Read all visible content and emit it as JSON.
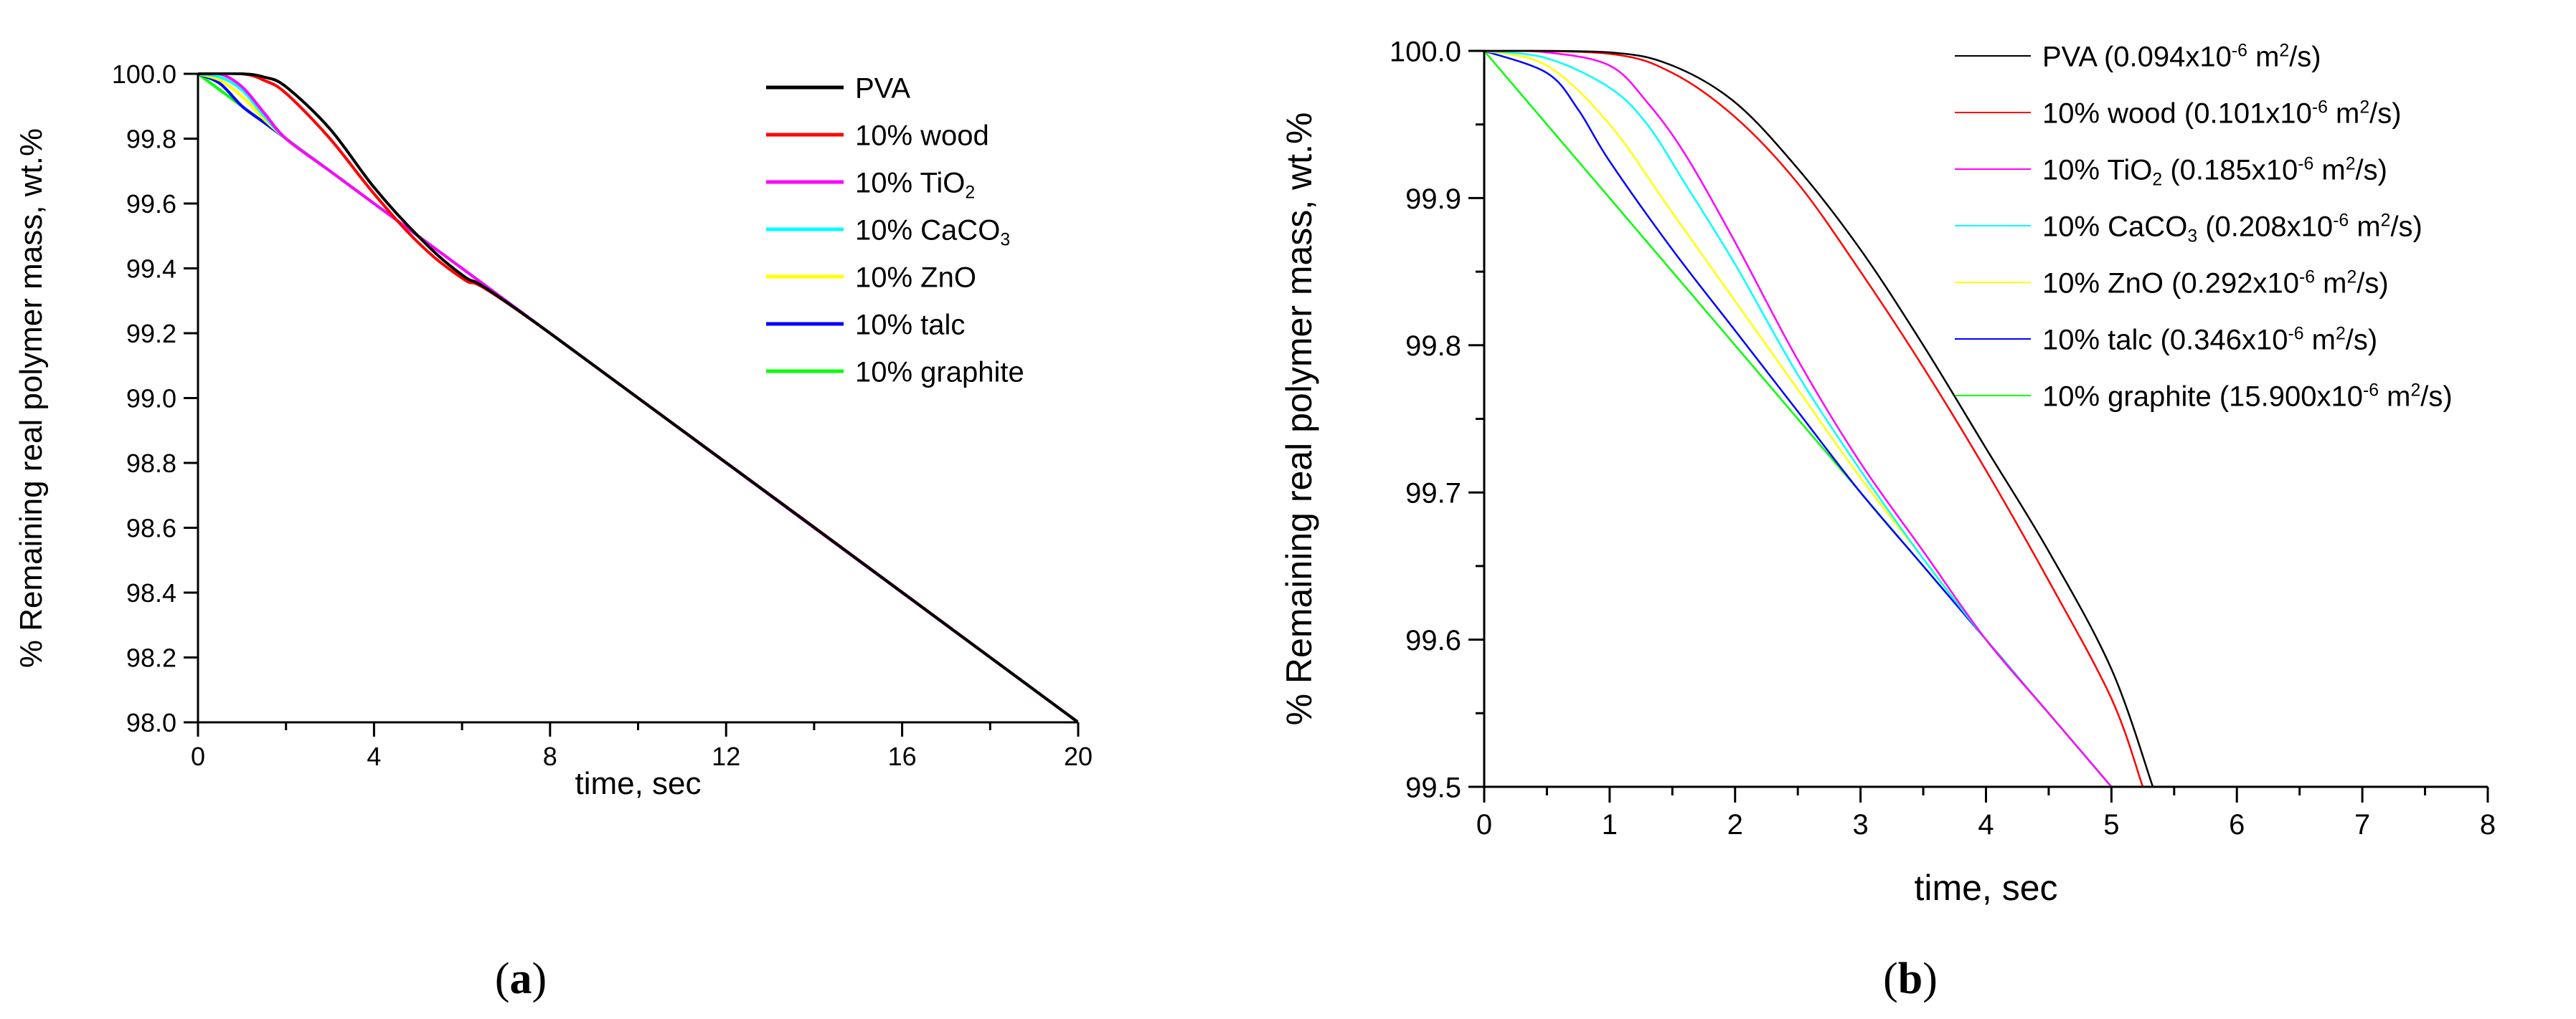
{
  "chart_data": [
    {
      "type": "line",
      "panel_label": "a",
      "xlabel": "time, sec",
      "ylabel": "% Remaining real polymer mass, wt.%",
      "xlim": [
        0,
        20
      ],
      "ylim": [
        98.0,
        100.0
      ],
      "xticks": [
        0,
        4,
        8,
        12,
        16,
        20
      ],
      "xtick_labels": [
        "0",
        "4",
        "8",
        "12",
        "16",
        "20"
      ],
      "yticks": [
        98.0,
        98.2,
        98.4,
        98.6,
        98.8,
        99.0,
        99.2,
        99.4,
        99.6,
        99.8,
        100.0
      ],
      "ytick_labels": [
        "98.0",
        "98.2",
        "98.4",
        "98.6",
        "98.8",
        "99.0",
        "99.2",
        "99.4",
        "99.6",
        "99.8",
        "100.0"
      ],
      "legend_position": "top-right",
      "series": [
        {
          "name": "PVA",
          "legend": [
            "PVA"
          ],
          "color": "#000000",
          "x": [
            0,
            1,
            1.5,
            2,
            3,
            4,
            5,
            6,
            8,
            20
          ],
          "values": [
            100.0,
            100.0,
            99.99,
            99.96,
            99.83,
            99.65,
            99.5,
            99.38,
            99.2,
            98.0
          ]
        },
        {
          "name": "10% wood",
          "legend": [
            "10% wood"
          ],
          "color": "#ff0000",
          "x": [
            0,
            1,
            1.5,
            2,
            3,
            4,
            5,
            6,
            8,
            20
          ],
          "values": [
            100.0,
            100.0,
            99.98,
            99.94,
            99.8,
            99.63,
            99.48,
            99.37,
            99.2,
            98.0
          ]
        },
        {
          "name": "10% TiO2",
          "legend": [
            "10% TiO",
            "2",
            ""
          ],
          "color": "#ff00ff",
          "x": [
            0,
            0.5,
            1,
            1.5,
            2,
            3,
            4,
            6,
            20
          ],
          "values": [
            100.0,
            100.0,
            99.96,
            99.88,
            99.8,
            99.7,
            99.6,
            99.4,
            98.0
          ]
        },
        {
          "name": "10% CaCO3",
          "legend": [
            "10% CaCO",
            "3",
            ""
          ],
          "color": "#00ffff",
          "x": [
            0,
            0.5,
            1,
            1.5,
            2,
            3,
            4,
            6,
            20
          ],
          "values": [
            100.0,
            99.99,
            99.95,
            99.87,
            99.8,
            99.7,
            99.6,
            99.4,
            98.0
          ]
        },
        {
          "name": "10% ZnO",
          "legend": [
            "10% ZnO"
          ],
          "color": "#ffff00",
          "x": [
            0,
            0.5,
            1,
            1.5,
            2,
            3,
            4,
            6,
            20
          ],
          "values": [
            100.0,
            99.98,
            99.93,
            99.86,
            99.8,
            99.7,
            99.6,
            99.4,
            98.0
          ]
        },
        {
          "name": "10% talc",
          "legend": [
            "10% talc"
          ],
          "color": "#0000ff",
          "x": [
            0,
            0.5,
            1,
            1.5,
            2,
            3,
            4,
            6,
            20
          ],
          "values": [
            100.0,
            99.97,
            99.9,
            99.85,
            99.8,
            99.7,
            99.6,
            99.4,
            98.0
          ]
        },
        {
          "name": "10% graphite",
          "legend": [
            "10% graphite"
          ],
          "color": "#00ff00",
          "x": [
            0,
            20
          ],
          "values": [
            100.0,
            98.0
          ]
        }
      ]
    },
    {
      "type": "line",
      "panel_label": "b",
      "xlabel": "time, sec",
      "ylabel": "% Remaining real polymer mass, wt.%",
      "xlim": [
        0,
        8
      ],
      "ylim": [
        99.5,
        100.0
      ],
      "xticks": [
        0,
        1,
        2,
        3,
        4,
        5,
        6,
        7,
        8
      ],
      "xtick_labels": [
        "0",
        "1",
        "2",
        "3",
        "4",
        "5",
        "6",
        "7",
        "8"
      ],
      "yticks": [
        99.5,
        99.6,
        99.7,
        99.8,
        99.9,
        100.0
      ],
      "ytick_labels": [
        "99.5",
        "99.6",
        "99.7",
        "99.8",
        "99.9",
        "100.0"
      ],
      "legend_position": "top-right",
      "series": [
        {
          "name": "PVA",
          "legend": [
            "PVA (0.094x10",
            "-6",
            " m",
            "2",
            "/s)"
          ],
          "color": "#000000",
          "x": [
            0,
            1,
            1.5,
            2,
            2.5,
            3,
            3.5,
            4,
            4.5,
            5,
            5.33
          ],
          "values": [
            100.0,
            99.999,
            99.99,
            99.965,
            99.92,
            99.865,
            99.8,
            99.73,
            99.66,
            99.58,
            99.5
          ]
        },
        {
          "name": "10% wood",
          "legend": [
            "10% wood (0.101x10",
            "-6",
            " m",
            "2",
            "/s)"
          ],
          "color": "#ff0000",
          "x": [
            0,
            1,
            1.5,
            2,
            2.5,
            3,
            3.5,
            4,
            4.5,
            5,
            5.25
          ],
          "values": [
            100.0,
            99.998,
            99.985,
            99.955,
            99.91,
            99.85,
            99.785,
            99.715,
            99.64,
            99.56,
            99.5
          ]
        },
        {
          "name": "10% TiO2",
          "legend": [
            "10% TiO",
            "2",
            " (0.185x10",
            "-6",
            " m",
            "2",
            "/s)"
          ],
          "color": "#ff00ff",
          "x": [
            0,
            0.5,
            1,
            1.3,
            1.6,
            2,
            2.5,
            3,
            3.5,
            4,
            4.5,
            5
          ],
          "values": [
            100.0,
            99.999,
            99.99,
            99.965,
            99.93,
            99.87,
            99.79,
            99.72,
            99.66,
            99.6,
            99.55,
            99.5
          ]
        },
        {
          "name": "10% CaCO3",
          "legend": [
            "10% CaCO",
            "3",
            " (0.208x10",
            "-6",
            " m",
            "2",
            "/s)"
          ],
          "color": "#00ffff",
          "x": [
            0,
            0.5,
            1,
            1.3,
            1.6,
            2,
            2.5,
            3,
            3.5,
            4,
            4.5,
            5
          ],
          "values": [
            100.0,
            99.995,
            99.975,
            99.95,
            99.91,
            99.855,
            99.78,
            99.715,
            99.655,
            99.6,
            99.55,
            99.5
          ]
        },
        {
          "name": "10% ZnO",
          "legend": [
            "10% ZnO (0.292x10",
            "-6",
            " m",
            "2",
            "/s)"
          ],
          "color": "#ffff00",
          "x": [
            0,
            0.5,
            1,
            1.5,
            2,
            2.5,
            3,
            3.5,
            4,
            4.5,
            5
          ],
          "values": [
            100.0,
            99.99,
            99.95,
            99.89,
            99.83,
            99.77,
            99.71,
            99.655,
            99.6,
            99.55,
            99.5
          ]
        },
        {
          "name": "10% talc",
          "legend": [
            "10% talc (0.346x10",
            "-6",
            " m",
            "2",
            "/s)"
          ],
          "color": "#0000ff",
          "x": [
            0,
            0.5,
            0.75,
            1,
            1.5,
            2,
            2.5,
            3,
            3.5,
            4,
            4.5,
            5
          ],
          "values": [
            100.0,
            99.985,
            99.96,
            99.925,
            99.865,
            99.81,
            99.755,
            99.7,
            99.65,
            99.6,
            99.55,
            99.5
          ]
        },
        {
          "name": "10% graphite",
          "legend": [
            "10% graphite (15.900x10",
            "-6",
            " m",
            "2",
            "/s)"
          ],
          "color": "#00ff00",
          "x": [
            0,
            5
          ],
          "values": [
            100.0,
            99.5
          ]
        }
      ]
    }
  ]
}
